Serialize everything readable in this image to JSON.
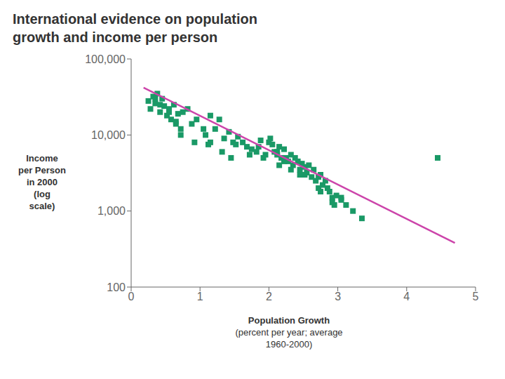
{
  "chart_data": {
    "type": "scatter",
    "title": "International evidence on population\ngrowth and income per person",
    "xlabel": "Population Growth\n(percent per year; average\n1960-2000)",
    "ylabel": "Income\nper Person\nin 2000\n(log\nscale)",
    "log": "y",
    "grid": false,
    "xlim": [
      0,
      5
    ],
    "xticks": [
      0,
      1,
      2,
      3,
      4,
      5
    ],
    "ylim": [
      100,
      100000
    ],
    "yticks": [
      100,
      {
        "value": 1000,
        "label": "1,000"
      },
      {
        "value": 10000,
        "label": "10,000"
      },
      {
        "value": 100000,
        "label": "100,000"
      }
    ],
    "series": [
      {
        "type": "scatter",
        "color": "#1a9966",
        "marker": "square",
        "x": [
          0.25,
          0.28,
          0.32,
          0.35,
          0.38,
          0.42,
          0.45,
          0.48,
          0.52,
          0.55,
          0.58,
          0.62,
          0.65,
          0.68,
          0.72,
          0.75,
          0.82,
          0.88,
          0.95,
          1.05,
          1.12,
          1.15,
          1.22,
          1.28,
          1.35,
          1.42,
          1.48,
          1.55,
          1.62,
          1.68,
          1.75,
          1.82,
          1.88,
          1.95,
          2.0,
          2.02,
          2.05,
          2.08,
          2.12,
          2.15,
          2.18,
          2.22,
          2.25,
          2.28,
          2.32,
          2.35,
          2.38,
          2.42,
          2.45,
          2.48,
          2.52,
          2.55,
          2.58,
          2.62,
          2.65,
          2.68,
          2.72,
          2.75,
          2.78,
          2.82,
          2.85,
          2.88,
          2.92,
          2.95,
          2.98,
          3.05,
          3.12,
          3.22,
          3.35,
          4.45,
          0.35,
          0.55,
          0.72,
          0.92,
          1.08,
          1.32,
          1.52,
          1.72,
          1.92,
          2.12,
          2.22,
          2.32,
          2.52,
          2.72,
          2.92,
          0.42,
          0.65,
          1.15,
          1.45,
          1.85,
          2.15,
          2.45,
          2.75,
          3.05
        ],
        "values": [
          28000,
          22000,
          32000,
          26000,
          35000,
          20000,
          30000,
          24000,
          18000,
          22000,
          16000,
          25000,
          14000,
          19000,
          10000,
          20000,
          22000,
          14000,
          16000,
          12000,
          7500,
          18000,
          12000,
          16000,
          9000,
          11000,
          8000,
          9500,
          8000,
          7000,
          6500,
          6000,
          8500,
          5500,
          8000,
          9000,
          7500,
          6000,
          5500,
          7000,
          5000,
          6500,
          5000,
          4500,
          5500,
          4000,
          5000,
          4500,
          3500,
          4200,
          3800,
          3200,
          4000,
          2800,
          3500,
          2500,
          2800,
          3000,
          2200,
          2500,
          2000,
          1800,
          1500,
          1200,
          1600,
          1400,
          1200,
          1000,
          800,
          5000,
          30000,
          20000,
          12000,
          8000,
          10000,
          6000,
          7500,
          5500,
          5000,
          6000,
          4500,
          3500,
          3000,
          2000,
          1300,
          25000,
          15000,
          8000,
          5000,
          7000,
          4000,
          3000,
          1800,
          1500
        ]
      },
      {
        "type": "line",
        "color": "#cc44aa",
        "x": [
          0.18,
          4.7
        ],
        "values": [
          42000,
          380
        ]
      }
    ]
  }
}
